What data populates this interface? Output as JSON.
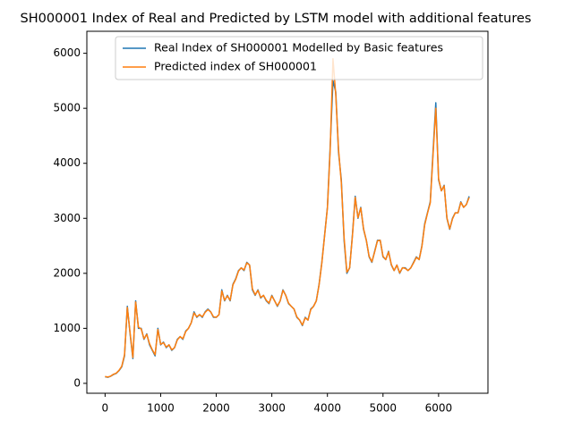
{
  "chart_data": {
    "type": "line",
    "title": "SH000001 Index of Real and Predicted by LSTM model with additional features",
    "x": [
      0,
      50,
      100,
      150,
      200,
      250,
      300,
      350,
      400,
      450,
      500,
      550,
      600,
      650,
      700,
      750,
      800,
      850,
      900,
      950,
      1000,
      1050,
      1100,
      1150,
      1200,
      1250,
      1300,
      1350,
      1400,
      1450,
      1500,
      1550,
      1600,
      1650,
      1700,
      1750,
      1800,
      1850,
      1900,
      1950,
      2000,
      2050,
      2100,
      2150,
      2200,
      2250,
      2300,
      2350,
      2400,
      2450,
      2500,
      2550,
      2600,
      2650,
      2700,
      2750,
      2800,
      2850,
      2900,
      2950,
      3000,
      3050,
      3100,
      3150,
      3200,
      3250,
      3300,
      3350,
      3400,
      3450,
      3500,
      3550,
      3600,
      3650,
      3700,
      3750,
      3800,
      3850,
      3900,
      3950,
      4000,
      4050,
      4100,
      4150,
      4200,
      4250,
      4300,
      4350,
      4400,
      4450,
      4500,
      4550,
      4600,
      4650,
      4700,
      4750,
      4800,
      4850,
      4900,
      4950,
      5000,
      5050,
      5100,
      5150,
      5200,
      5250,
      5300,
      5350,
      5400,
      5450,
      5500,
      5550,
      5600,
      5650,
      5700,
      5750,
      5800,
      5850,
      5900,
      5950,
      6000,
      6050,
      6100,
      6150,
      6200,
      6250,
      6300,
      6350,
      6400,
      6450,
      6500,
      6550
    ],
    "series": [
      {
        "name": "Real Index of SH000001 Modelled by Basic features",
        "color": "#1f77b4",
        "values": [
          120,
          110,
          130,
          160,
          180,
          230,
          300,
          500,
          1400,
          900,
          450,
          1500,
          1000,
          1000,
          800,
          900,
          700,
          600,
          500,
          1000,
          700,
          750,
          650,
          700,
          600,
          650,
          800,
          850,
          800,
          950,
          1000,
          1100,
          1300,
          1200,
          1250,
          1200,
          1300,
          1350,
          1300,
          1200,
          1200,
          1250,
          1700,
          1500,
          1600,
          1500,
          1800,
          1900,
          2050,
          2100,
          2050,
          2200,
          2150,
          1700,
          1600,
          1700,
          1550,
          1600,
          1500,
          1450,
          1600,
          1500,
          1400,
          1500,
          1700,
          1600,
          1450,
          1400,
          1350,
          1200,
          1150,
          1050,
          1200,
          1150,
          1350,
          1400,
          1500,
          1800,
          2200,
          2700,
          3200,
          4300,
          5500,
          5300,
          4200,
          3700,
          2600,
          2000,
          2100,
          2700,
          3400,
          3000,
          3200,
          2800,
          2600,
          2300,
          2200,
          2400,
          2600,
          2600,
          2300,
          2250,
          2400,
          2150,
          2050,
          2150,
          2000,
          2100,
          2100,
          2050,
          2100,
          2200,
          2300,
          2250,
          2500,
          2900,
          3100,
          3300,
          4200,
          5100,
          3700,
          3500,
          3600,
          3000,
          2800,
          3000,
          3100,
          3100,
          3300,
          3200,
          3250,
          3400
        ]
      },
      {
        "name": "Predicted index of SH000001",
        "color": "#ff7f0e",
        "values": [
          125,
          115,
          130,
          165,
          185,
          235,
          310,
          520,
          1380,
          920,
          470,
          1480,
          1020,
          990,
          810,
          890,
          720,
          610,
          520,
          980,
          710,
          740,
          660,
          700,
          610,
          650,
          790,
          850,
          810,
          940,
          1000,
          1100,
          1280,
          1210,
          1250,
          1210,
          1290,
          1340,
          1300,
          1210,
          1200,
          1250,
          1680,
          1510,
          1590,
          1510,
          1790,
          1890,
          2040,
          2100,
          2060,
          2190,
          2150,
          1720,
          1610,
          1690,
          1560,
          1600,
          1510,
          1460,
          1590,
          1500,
          1410,
          1500,
          1690,
          1600,
          1460,
          1400,
          1350,
          1210,
          1150,
          1060,
          1190,
          1150,
          1340,
          1400,
          1500,
          1790,
          2190,
          2690,
          3190,
          4250,
          5900,
          5250,
          4250,
          3650,
          2650,
          2020,
          2100,
          2680,
          3380,
          3010,
          3190,
          2810,
          2600,
          2310,
          2210,
          2390,
          2590,
          2600,
          2310,
          2250,
          2390,
          2160,
          2050,
          2150,
          2010,
          2100,
          2090,
          2050,
          2100,
          2190,
          2290,
          2250,
          2490,
          2880,
          3090,
          3280,
          4150,
          5000,
          3720,
          3500,
          3590,
          3010,
          2810,
          2990,
          3100,
          3100,
          3290,
          3200,
          3250,
          3380
        ]
      }
    ],
    "xlim": [
      -328,
      6888
    ],
    "ylim": [
      -180,
      6400
    ],
    "xticks": [
      0,
      1000,
      2000,
      3000,
      4000,
      5000,
      6000
    ],
    "yticks": [
      0,
      1000,
      2000,
      3000,
      4000,
      5000,
      6000
    ],
    "legend": "upper right"
  }
}
